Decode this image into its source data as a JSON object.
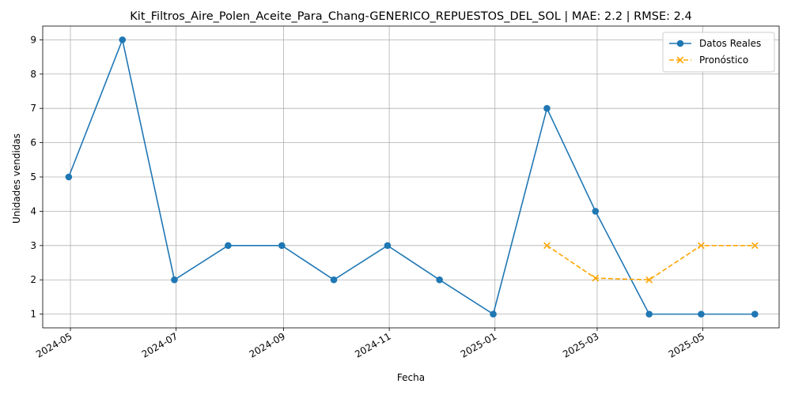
{
  "chart_data": {
    "type": "line",
    "title": "Kit_Filtros_Aire_Polen_Aceite_Para_Chang-GENERICO_REPUESTOS_DEL_SOL | MAE: 2.2 | RMSE: 2.4",
    "xlabel": "Fecha",
    "ylabel": "Unidades vendidas",
    "grid": true,
    "legend_position": "top-right",
    "x_ticks": [
      "2024-05",
      "2024-07",
      "2024-09",
      "2024-11",
      "2025-01",
      "2025-03",
      "2025-05"
    ],
    "y_ticks": [
      1,
      2,
      3,
      4,
      5,
      6,
      7,
      8,
      9
    ],
    "xlim": [
      "2024-04-15",
      "2025-06-14"
    ],
    "ylim": [
      0.6,
      9.4
    ],
    "series": [
      {
        "name": "Datos Reales",
        "color": "#1f77b4",
        "marker": "circle",
        "line_style": "solid",
        "x": [
          "2024-04-30",
          "2024-05-31",
          "2024-06-30",
          "2024-07-31",
          "2024-08-31",
          "2024-09-30",
          "2024-10-31",
          "2024-11-30",
          "2024-12-31",
          "2025-01-31",
          "2025-02-28",
          "2025-03-31",
          "2025-04-30",
          "2025-05-31"
        ],
        "values": [
          5,
          9,
          2,
          3,
          3,
          2,
          3,
          2,
          1,
          7,
          4,
          1,
          1,
          1
        ]
      },
      {
        "name": "Pronóstico",
        "color": "#ffa500",
        "marker": "x",
        "line_style": "dashed",
        "x": [
          "2025-01-31",
          "2025-02-28",
          "2025-03-31",
          "2025-04-30",
          "2025-05-31"
        ],
        "values": [
          3,
          2.05,
          2,
          3,
          3
        ]
      }
    ]
  }
}
